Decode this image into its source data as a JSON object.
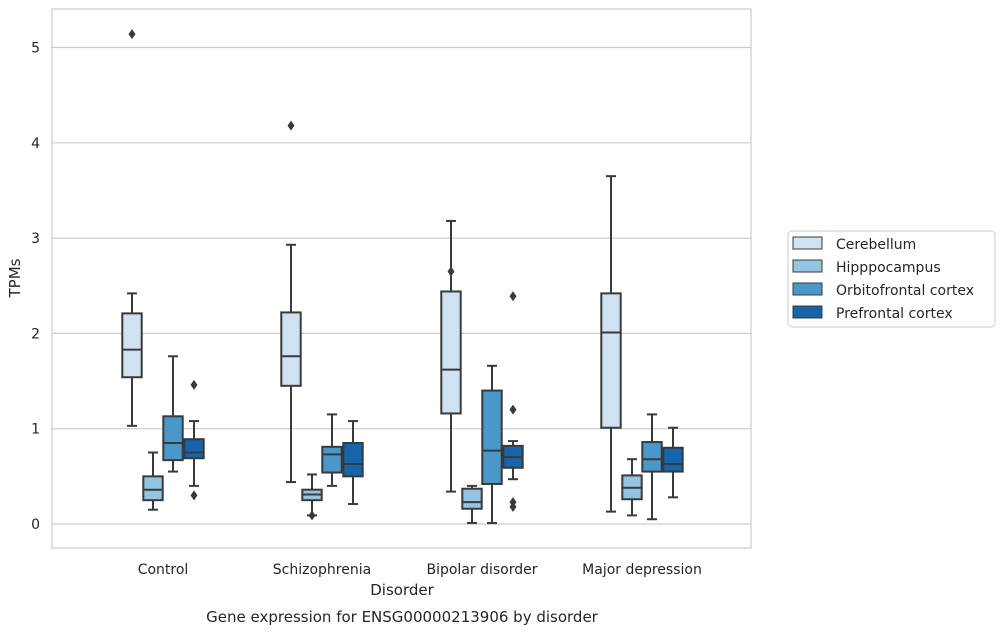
{
  "caption": "Gene expression for ENSG00000213906 by disorder",
  "colors": {
    "Cerebellum": "#d0e1f2",
    "Hipppocampus": "#94c4df",
    "Orbitofrontal cortex": "#4a98c9",
    "Prefrontal cortex": "#1764ab",
    "stroke": "#3a3a3a",
    "grid": "#cccccc",
    "frame": "#cccccc"
  },
  "chart_data": {
    "type": "box",
    "title": "",
    "xlabel": "Disorder",
    "ylabel": "TPMs",
    "ylim": [
      -0.25,
      5.4
    ],
    "yticks": [
      0,
      1,
      2,
      3,
      4,
      5
    ],
    "grid": true,
    "legend_position": "right",
    "categories": [
      "Control",
      "Schizophrenia",
      "Bipolar disorder",
      "Major depression"
    ],
    "series": [
      {
        "name": "Cerebellum",
        "boxes": [
          {
            "whislo": 1.03,
            "q1": 1.54,
            "med": 1.83,
            "q3": 2.21,
            "whishi": 2.42,
            "fliers": [
              5.14
            ]
          },
          {
            "whislo": 0.44,
            "q1": 1.45,
            "med": 1.76,
            "q3": 2.22,
            "whishi": 2.93,
            "fliers": [
              4.18
            ]
          },
          {
            "whislo": 0.34,
            "q1": 1.16,
            "med": 1.62,
            "q3": 2.44,
            "whishi": 3.18,
            "fliers": [
              2.65
            ]
          },
          {
            "whislo": 0.13,
            "q1": 1.01,
            "med": 2.01,
            "q3": 2.42,
            "whishi": 3.65,
            "fliers": []
          }
        ]
      },
      {
        "name": "Hipppocampus",
        "boxes": [
          {
            "whislo": 0.15,
            "q1": 0.25,
            "med": 0.36,
            "q3": 0.5,
            "whishi": 0.75,
            "fliers": []
          },
          {
            "whislo": 0.09,
            "q1": 0.25,
            "med": 0.31,
            "q3": 0.36,
            "whishi": 0.52,
            "fliers": [
              0.09
            ]
          },
          {
            "whislo": 0.01,
            "q1": 0.16,
            "med": 0.23,
            "q3": 0.37,
            "whishi": 0.4,
            "fliers": []
          },
          {
            "whislo": 0.09,
            "q1": 0.26,
            "med": 0.38,
            "q3": 0.51,
            "whishi": 0.68,
            "fliers": []
          }
        ]
      },
      {
        "name": "Orbitofrontal cortex",
        "boxes": [
          {
            "whislo": 0.55,
            "q1": 0.67,
            "med": 0.85,
            "q3": 1.13,
            "whishi": 1.76,
            "fliers": []
          },
          {
            "whislo": 0.4,
            "q1": 0.54,
            "med": 0.73,
            "q3": 0.81,
            "whishi": 1.15,
            "fliers": []
          },
          {
            "whislo": 0.01,
            "q1": 0.42,
            "med": 0.77,
            "q3": 1.4,
            "whishi": 1.66,
            "fliers": []
          },
          {
            "whislo": 0.05,
            "q1": 0.55,
            "med": 0.68,
            "q3": 0.86,
            "whishi": 1.15,
            "fliers": []
          }
        ]
      },
      {
        "name": "Prefrontal cortex",
        "boxes": [
          {
            "whislo": 0.4,
            "q1": 0.69,
            "med": 0.75,
            "q3": 0.89,
            "whishi": 1.08,
            "fliers": [
              1.46,
              0.3
            ]
          },
          {
            "whislo": 0.21,
            "q1": 0.5,
            "med": 0.63,
            "q3": 0.85,
            "whishi": 1.08,
            "fliers": []
          },
          {
            "whislo": 0.47,
            "q1": 0.59,
            "med": 0.7,
            "q3": 0.82,
            "whishi": 0.87,
            "fliers": [
              2.39,
              1.2,
              0.23,
              0.18
            ]
          },
          {
            "whislo": 0.28,
            "q1": 0.55,
            "med": 0.63,
            "q3": 0.8,
            "whishi": 1.01,
            "fliers": []
          }
        ]
      }
    ]
  }
}
